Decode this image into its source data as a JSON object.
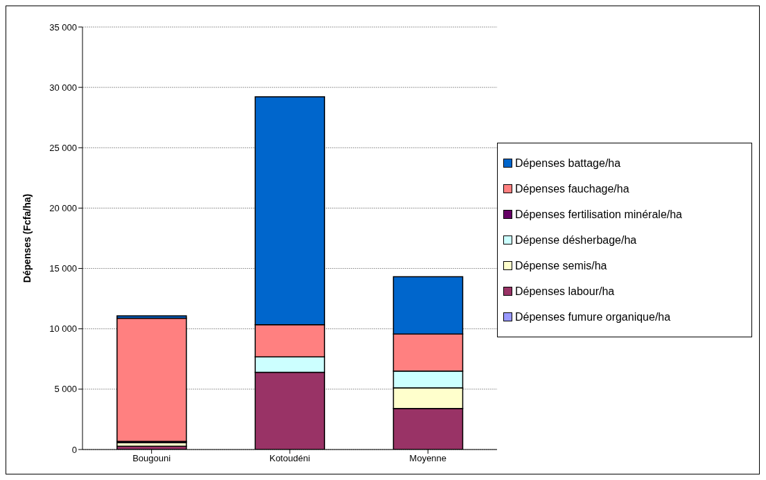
{
  "chart_data": {
    "type": "bar",
    "stacked": true,
    "ylabel": "Dépenses (Fcfa/ha)",
    "categories": [
      "Bougouni",
      "Kotoudéni",
      "Moyenne"
    ],
    "series": [
      {
        "name": "Dépenses fumure organique/ha",
        "color": "#9999ff",
        "values": [
          0,
          0,
          null
        ]
      },
      {
        "name": "Dépenses labour/ha",
        "color": "#993366",
        "values": [
          270,
          6400,
          3400
        ]
      },
      {
        "name": "Dépense semis/ha",
        "color": "#ffffcc",
        "values": [
          300,
          0,
          1700
        ]
      },
      {
        "name": "Dépense désherbage/ha",
        "color": "#ccffff",
        "values": [
          0,
          1270,
          1400
        ]
      },
      {
        "name": "Dépenses fertilisation minérale/ha",
        "color": "#660066",
        "values": [
          100,
          0,
          null
        ]
      },
      {
        "name": "Dépenses fauchage/ha",
        "color": "#ff8080",
        "values": [
          10200,
          2670,
          3070
        ]
      },
      {
        "name": "Dépenses battage/ha",
        "color": "#0066cc",
        "values": [
          200,
          18880,
          4750
        ]
      }
    ],
    "ylim": [
      0,
      35000
    ],
    "yticks": [
      0,
      {
        "value": 5000,
        "label": "5 000"
      },
      {
        "value": 10000,
        "label": "10 000"
      },
      {
        "value": 15000,
        "label": "15 000"
      },
      {
        "value": 20000,
        "label": "20 000"
      },
      {
        "value": 25000,
        "label": "25 000"
      },
      {
        "value": 30000,
        "label": "30 000"
      },
      {
        "value": 35000,
        "label": "35 000"
      }
    ],
    "grid": "y",
    "legend": "right"
  }
}
